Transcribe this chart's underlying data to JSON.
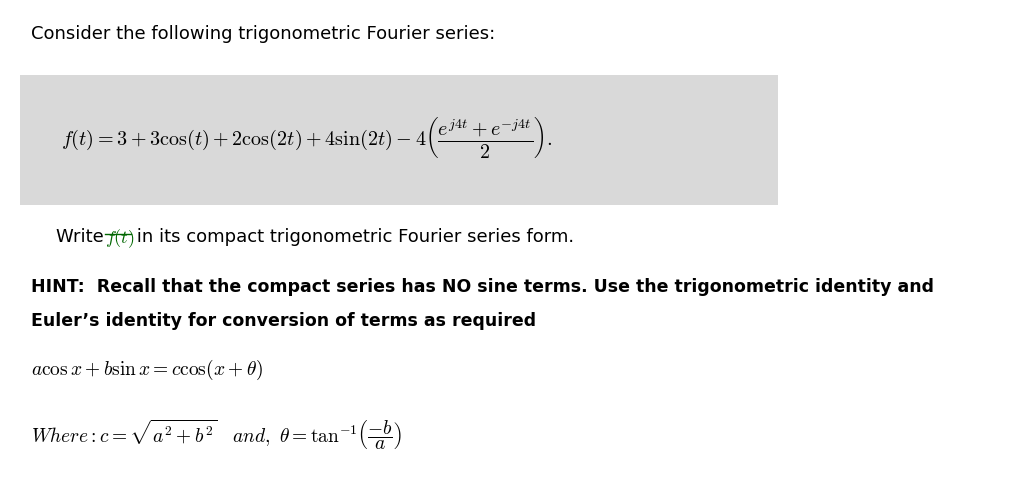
{
  "bg_color": "#ffffff",
  "box_color": "#d9d9d9",
  "text_color": "#000000",
  "link_color": "#006600",
  "line1": "Consider the following trigonometric Fourier series:",
  "formula_main": "$f(t) = 3 + 3\\cos(t) + 2\\cos(2t) + 4\\sin(2t) - 4\\left(\\dfrac{e^{j4t} + e^{-j4t}}{2}\\right).$",
  "hint_line1": "HINT:  Recall that the compact series has NO sine terms. Use the trigonometric identity and",
  "hint_line2": "Euler’s identity for conversion of terms as required",
  "identity": "$a\\cos x + b\\sin x = c\\cos(x + \\theta)$",
  "where_formula": "$Where: c = \\sqrt{a^2 + b^2}\\quad and,\\ \\theta = \\tan^{-1}\\!\\left(\\dfrac{-b}{a}\\right)$",
  "fig_width": 10.24,
  "fig_height": 5.0,
  "dpi": 100
}
